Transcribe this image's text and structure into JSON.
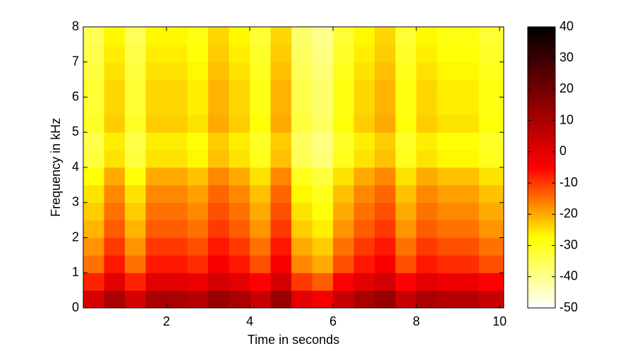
{
  "chart_data": {
    "type": "heatmap",
    "xlabel": "Time in seconds",
    "ylabel": "Frequency in kHz",
    "xlim": [
      0,
      10.1
    ],
    "ylim": [
      0,
      8
    ],
    "xticks": [
      2,
      4,
      6,
      8,
      10
    ],
    "yticks": [
      0,
      1,
      2,
      3,
      4,
      5,
      6,
      7,
      8
    ],
    "xbins": [
      0,
      0.5,
      1,
      1.5,
      2,
      2.5,
      3,
      3.5,
      4,
      4.5,
      5,
      5.5,
      6,
      6.5,
      7,
      7.5,
      8,
      8.5,
      9,
      9.5,
      10.1
    ],
    "ybins": [
      0,
      0.5,
      1,
      1.5,
      2,
      2.5,
      3,
      3.5,
      4,
      4.5,
      5,
      5.5,
      6,
      6.5,
      7,
      7.5,
      8
    ],
    "z": [
      [
        2,
        10,
        2,
        10,
        10,
        8,
        13,
        10,
        5,
        13,
        0,
        -3,
        5,
        10,
        13,
        5,
        10,
        8,
        8,
        5
      ],
      [
        -8,
        0,
        -8,
        0,
        0,
        -2,
        3,
        0,
        -5,
        3,
        -10,
        -13,
        -5,
        0,
        3,
        -5,
        0,
        -2,
        -2,
        -5
      ],
      [
        -15,
        -7,
        -15,
        -7,
        -7,
        -9,
        -4,
        -7,
        -12,
        -4,
        -17,
        -20,
        -12,
        -7,
        -4,
        -12,
        -7,
        -9,
        -9,
        -12
      ],
      [
        -18,
        -10,
        -18,
        -10,
        -10,
        -12,
        -7,
        -10,
        -15,
        -7,
        -20,
        -23,
        -15,
        -10,
        -7,
        -15,
        -10,
        -12,
        -12,
        -15
      ],
      [
        -21,
        -13,
        -21,
        -13,
        -13,
        -15,
        -10,
        -13,
        -18,
        -10,
        -23,
        -26,
        -18,
        -13,
        -10,
        -18,
        -13,
        -15,
        -15,
        -18
      ],
      [
        -23,
        -15,
        -23,
        -15,
        -15,
        -17,
        -12,
        -15,
        -20,
        -12,
        -25,
        -28,
        -20,
        -15,
        -12,
        -20,
        -15,
        -17,
        -17,
        -20
      ],
      [
        -25,
        -17,
        -25,
        -17,
        -17,
        -19,
        -14,
        -17,
        -22,
        -14,
        -27,
        -30,
        -22,
        -17,
        -14,
        -22,
        -17,
        -19,
        -19,
        -22
      ],
      [
        -28,
        -20,
        -28,
        -20,
        -20,
        -22,
        -17,
        -20,
        -25,
        -17,
        -30,
        -33,
        -25,
        -20,
        -17,
        -25,
        -20,
        -22,
        -22,
        -25
      ],
      [
        -33,
        -25,
        -33,
        -25,
        -25,
        -27,
        -22,
        -25,
        -30,
        -22,
        -35,
        -38,
        -30,
        -25,
        -22,
        -30,
        -25,
        -27,
        -27,
        -30
      ],
      [
        -34,
        -26,
        -34,
        -26,
        -26,
        -28,
        -23,
        -26,
        -31,
        -23,
        -36,
        -39,
        -31,
        -26,
        -23,
        -31,
        -26,
        -28,
        -28,
        -31
      ],
      [
        -31,
        -23,
        -31,
        -23,
        -23,
        -25,
        -20,
        -23,
        -28,
        -20,
        -33,
        -36,
        -28,
        -23,
        -20,
        -28,
        -23,
        -25,
        -25,
        -28
      ],
      [
        -32,
        -24,
        -32,
        -24,
        -24,
        -26,
        -21,
        -24,
        -29,
        -21,
        -34,
        -37,
        -29,
        -24,
        -21,
        -29,
        -24,
        -26,
        -26,
        -29
      ],
      [
        -32,
        -24,
        -32,
        -24,
        -24,
        -26,
        -21,
        -24,
        -29,
        -21,
        -34,
        -37,
        -29,
        -24,
        -21,
        -29,
        -24,
        -26,
        -26,
        -29
      ],
      [
        -33,
        -25,
        -33,
        -25,
        -25,
        -27,
        -22,
        -25,
        -30,
        -22,
        -35,
        -38,
        -30,
        -25,
        -22,
        -30,
        -25,
        -27,
        -27,
        -30
      ],
      [
        -34,
        -26,
        -34,
        -26,
        -26,
        -28,
        -23,
        -26,
        -31,
        -23,
        -36,
        -39,
        -31,
        -26,
        -23,
        -31,
        -26,
        -28,
        -28,
        -31
      ],
      [
        -35,
        -27,
        -35,
        -27,
        -27,
        -29,
        -24,
        -27,
        -32,
        -24,
        -37,
        -40,
        -32,
        -27,
        -24,
        -32,
        -27,
        -29,
        -29,
        -32
      ]
    ],
    "clim": [
      -50,
      40
    ],
    "cticks": [
      -50,
      -40,
      -30,
      -20,
      -10,
      0,
      10,
      20,
      30,
      40
    ],
    "colormap": [
      "#ffffff",
      "#ffff00",
      "#ff0000",
      "#800000",
      "#000000"
    ]
  }
}
